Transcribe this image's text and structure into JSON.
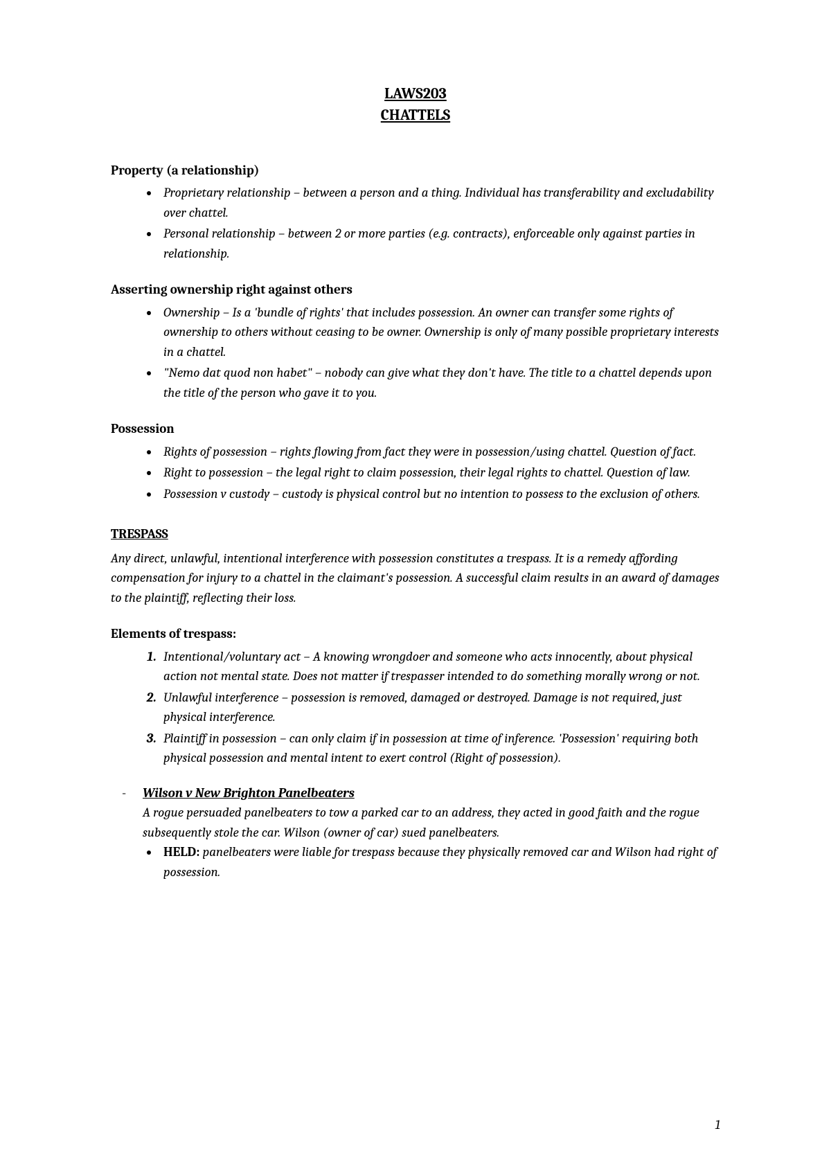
{
  "title": {
    "line1": "LAWS203",
    "line2": "CHATTELS"
  },
  "sections": {
    "property": {
      "heading": "Property (a relationship)",
      "bullets": [
        "Proprietary relationship – between a person and a thing. Individual has transferability and excludability over chattel.",
        "Personal relationship – between 2 or more parties (e.g. contracts), enforceable only against parties in relationship."
      ]
    },
    "asserting": {
      "heading": "Asserting ownership right against others",
      "bullets": [
        "Ownership – Is a 'bundle of rights' that includes possession. An owner can transfer some rights of ownership to others without ceasing to be owner. Ownership is only of many possible proprietary interests in a chattel.",
        "\"Nemo dat quod non habet\" – nobody can give what they don't have. The title to a chattel depends upon the title of the person who gave it to you."
      ]
    },
    "possession": {
      "heading": "Possession",
      "bullets": [
        "Rights of possession – rights flowing from fact they were in possession/using chattel. Question of fact.",
        "Right to possession – the legal right to claim possession, their legal rights to chattel. Question of law.",
        "Possession v custody – custody is physical control but no intention to possess to the exclusion of others."
      ]
    },
    "trespass": {
      "heading": "TRESPASS",
      "intro": "Any direct, unlawful, intentional interference with possession constitutes a trespass. It is a remedy affording compensation for injury to a chattel in the claimant's possession. A successful claim results in an award of damages to the plaintiff, reflecting their loss.",
      "elements_heading": "Elements of trespass:",
      "elements": [
        "Intentional/voluntary act – A knowing wrongdoer and someone who acts innocently, about physical action not mental state. Does not matter if trespasser intended to do something morally wrong or not.",
        "Unlawful interference – possession is removed, damaged or destroyed. Damage is not required, just physical interference.",
        "Plaintiff in possession – can only claim if in possession at time of inference. 'Possession' requiring both physical possession and mental intent to exert control (Right of possession)."
      ],
      "case": {
        "name": "Wilson v New Brighton Panelbeaters",
        "facts": "A rogue persuaded panelbeaters to tow a parked car to an address, they acted in good faith and the rogue subsequently stole the car. Wilson (owner of car) sued panelbeaters.",
        "held_label": "HELD:",
        "held": " panelbeaters were liable for trespass because they physically removed car and Wilson had right of possession."
      }
    }
  },
  "page_number": "1"
}
